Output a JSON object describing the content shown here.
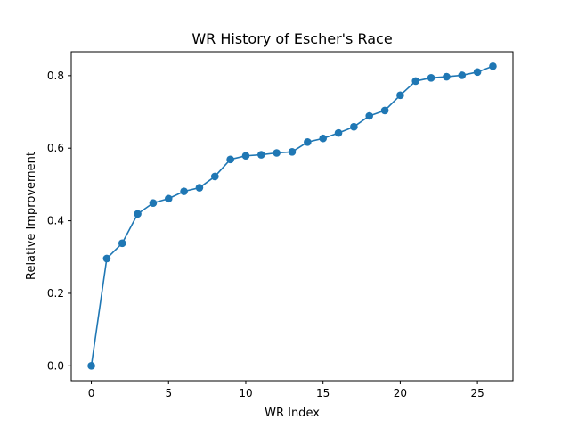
{
  "chart_data": {
    "type": "line",
    "title": "WR History of Escher's Race",
    "xlabel": "WR Index",
    "ylabel": "Relative Improvement",
    "xlim": [
      -1.3,
      27.3
    ],
    "ylim": [
      -0.041,
      0.866
    ],
    "xticks": [
      0,
      5,
      10,
      15,
      20,
      25
    ],
    "xtick_labels": [
      "0",
      "5",
      "10",
      "15",
      "20",
      "25"
    ],
    "yticks": [
      0.0,
      0.2,
      0.4,
      0.6,
      0.8
    ],
    "ytick_labels": [
      "0.0",
      "0.2",
      "0.4",
      "0.6",
      "0.8"
    ],
    "grid": false,
    "series": [
      {
        "color": "#1f77b4",
        "marker": "circle",
        "x": [
          0,
          1,
          2,
          3,
          4,
          5,
          6,
          7,
          8,
          9,
          10,
          11,
          12,
          13,
          14,
          15,
          16,
          17,
          18,
          19,
          20,
          21,
          22,
          23,
          24,
          25,
          26
        ],
        "y": [
          0.0,
          0.296,
          0.338,
          0.419,
          0.449,
          0.461,
          0.481,
          0.491,
          0.522,
          0.569,
          0.579,
          0.582,
          0.587,
          0.59,
          0.617,
          0.627,
          0.642,
          0.659,
          0.689,
          0.704,
          0.746,
          0.785,
          0.794,
          0.797,
          0.801,
          0.81,
          0.826
        ]
      }
    ]
  }
}
